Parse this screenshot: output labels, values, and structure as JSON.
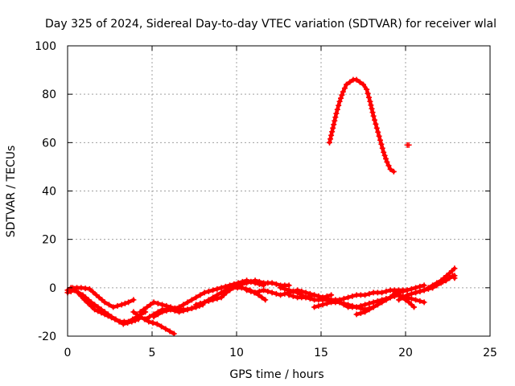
{
  "chart_data": {
    "type": "scatter",
    "title": "Day 325 of 2024, Sidereal Day-to-day VTEC variation (SDTVAR) for receiver wlal",
    "xlabel": "GPS time / hours",
    "ylabel": "SDTVAR / TECUs",
    "xlim": [
      0,
      25
    ],
    "ylim": [
      -20,
      100
    ],
    "xticks": [
      0,
      5,
      10,
      15,
      20,
      25
    ],
    "yticks": [
      -20,
      0,
      20,
      40,
      60,
      80,
      100
    ],
    "xtick_labels": [
      "0",
      "5",
      "10",
      "15",
      "20",
      "25"
    ],
    "ytick_labels": [
      "-20",
      "0",
      "20",
      "40",
      "60",
      "80",
      "100"
    ],
    "grid": true,
    "marker_color": "#ff0000",
    "series": [
      {
        "name": "arc-1",
        "points": [
          [
            0,
            -1
          ],
          [
            0.3,
            0
          ],
          [
            0.8,
            0
          ],
          [
            1.3,
            -0.5
          ],
          [
            1.7,
            -3
          ],
          [
            2.2,
            -6
          ],
          [
            2.7,
            -8
          ],
          [
            3.2,
            -7
          ],
          [
            3.6,
            -6
          ],
          [
            3.9,
            -5
          ]
        ]
      },
      {
        "name": "arc-2",
        "points": [
          [
            0,
            -2
          ],
          [
            0.4,
            -1
          ],
          [
            0.9,
            -3
          ],
          [
            1.4,
            -6
          ],
          [
            2,
            -9
          ],
          [
            2.6,
            -12
          ],
          [
            3.1,
            -14
          ],
          [
            3.6,
            -14
          ],
          [
            4.1,
            -12
          ],
          [
            4.6,
            -10
          ]
        ]
      },
      {
        "name": "arc-3",
        "points": [
          [
            0.2,
            0
          ],
          [
            0.6,
            -2
          ],
          [
            1,
            -5
          ],
          [
            1.6,
            -9
          ],
          [
            2.2,
            -11
          ],
          [
            2.8,
            -13
          ],
          [
            3.3,
            -15
          ],
          [
            3.8,
            -14
          ],
          [
            4.2,
            -13
          ]
        ]
      },
      {
        "name": "arc-4",
        "points": [
          [
            3.9,
            -10
          ],
          [
            4.3,
            -12
          ],
          [
            4.8,
            -14
          ],
          [
            5.3,
            -15
          ],
          [
            5.8,
            -17
          ],
          [
            6.3,
            -19
          ]
        ]
      },
      {
        "name": "arc-5",
        "points": [
          [
            4.3,
            -10
          ],
          [
            4.7,
            -8
          ],
          [
            5.1,
            -6
          ],
          [
            5.6,
            -7
          ],
          [
            6.1,
            -8
          ],
          [
            6.6,
            -9
          ],
          [
            7.1,
            -9
          ],
          [
            7.6,
            -8
          ],
          [
            8,
            -7
          ]
        ]
      },
      {
        "name": "arc-6",
        "points": [
          [
            4.6,
            -13
          ],
          [
            5.1,
            -11
          ],
          [
            5.6,
            -9
          ],
          [
            6.1,
            -9
          ],
          [
            6.6,
            -10
          ],
          [
            7.1,
            -9
          ],
          [
            7.6,
            -8
          ],
          [
            8.1,
            -6
          ],
          [
            8.6,
            -4
          ],
          [
            9.1,
            -2
          ],
          [
            9.6,
            0
          ],
          [
            10.1,
            1
          ],
          [
            10.6,
            2
          ],
          [
            11.1,
            3
          ],
          [
            11.6,
            2
          ],
          [
            12.1,
            2
          ],
          [
            12.6,
            1
          ],
          [
            13.1,
            1
          ]
        ]
      },
      {
        "name": "arc-7",
        "points": [
          [
            5.1,
            -12
          ],
          [
            5.6,
            -10
          ],
          [
            6.1,
            -9
          ],
          [
            6.6,
            -8
          ],
          [
            7.1,
            -6
          ],
          [
            7.6,
            -4
          ],
          [
            8.1,
            -2
          ],
          [
            8.6,
            -1
          ],
          [
            9.1,
            0
          ],
          [
            9.6,
            1
          ],
          [
            10.1,
            2
          ],
          [
            10.6,
            3
          ],
          [
            11.1,
            2
          ],
          [
            11.6,
            1
          ]
        ]
      },
      {
        "name": "arc-8",
        "points": [
          [
            7.6,
            -7
          ],
          [
            8.1,
            -6
          ],
          [
            8.6,
            -5
          ],
          [
            9.1,
            -4
          ],
          [
            9.4,
            -2
          ],
          [
            9.8,
            0
          ],
          [
            10.3,
            0
          ],
          [
            10.8,
            -1
          ],
          [
            11.3,
            -3
          ],
          [
            11.7,
            -5
          ]
        ]
      },
      {
        "name": "arc-9",
        "points": [
          [
            10.6,
            -1
          ],
          [
            11.1,
            -2
          ],
          [
            11.6,
            -1
          ],
          [
            12.1,
            -2
          ],
          [
            12.6,
            -3
          ],
          [
            13.1,
            -2
          ],
          [
            13.6,
            -1
          ],
          [
            14.1,
            -2
          ],
          [
            14.6,
            -3
          ],
          [
            15.1,
            -4
          ],
          [
            15.6,
            -3
          ]
        ]
      },
      {
        "name": "arc-10",
        "points": [
          [
            12.6,
            0
          ],
          [
            13.1,
            -1
          ],
          [
            13.6,
            -2
          ],
          [
            14.1,
            -4
          ],
          [
            14.6,
            -5
          ],
          [
            15.1,
            -5
          ],
          [
            15.6,
            -5
          ],
          [
            16.1,
            -5
          ],
          [
            16.6,
            -4
          ],
          [
            17.1,
            -3
          ],
          [
            17.6,
            -3
          ],
          [
            18.1,
            -2
          ],
          [
            18.6,
            -2
          ],
          [
            19.1,
            -1
          ],
          [
            19.6,
            -1
          ],
          [
            20.1,
            -1
          ]
        ]
      },
      {
        "name": "arc-11",
        "points": [
          [
            13.1,
            -3
          ],
          [
            13.6,
            -4
          ],
          [
            14.1,
            -4
          ],
          [
            14.6,
            -3
          ],
          [
            15.1,
            -4
          ],
          [
            15.6,
            -5
          ],
          [
            16.1,
            -6
          ],
          [
            16.6,
            -8
          ],
          [
            17.1,
            -8
          ],
          [
            17.6,
            -7
          ],
          [
            18.1,
            -6
          ],
          [
            18.6,
            -5
          ],
          [
            19.1,
            -4
          ],
          [
            19.6,
            -2
          ],
          [
            20.1,
            -1
          ],
          [
            20.6,
            0
          ],
          [
            21.1,
            1
          ]
        ]
      },
      {
        "name": "arc-12",
        "points": [
          [
            14.6,
            -8
          ],
          [
            15.1,
            -7
          ],
          [
            15.6,
            -6
          ],
          [
            16.1,
            -6
          ],
          [
            16.6,
            -7
          ],
          [
            17.1,
            -8
          ],
          [
            17.6,
            -9
          ],
          [
            18.1,
            -8
          ],
          [
            18.6,
            -6
          ],
          [
            19.1,
            -4
          ],
          [
            19.6,
            -3
          ],
          [
            20.1,
            -4
          ],
          [
            20.6,
            -5
          ],
          [
            21.1,
            -6
          ]
        ]
      },
      {
        "name": "arc-13",
        "points": [
          [
            17.1,
            -11
          ],
          [
            17.6,
            -10
          ],
          [
            18.1,
            -8
          ],
          [
            18.6,
            -6
          ],
          [
            19.1,
            -4
          ],
          [
            19.4,
            -2
          ],
          [
            19.8,
            -4
          ],
          [
            20.2,
            -6
          ],
          [
            20.5,
            -8
          ]
        ]
      },
      {
        "name": "arc-14",
        "points": [
          [
            19.6,
            -5
          ],
          [
            20.1,
            -3
          ],
          [
            20.6,
            -2
          ],
          [
            21.1,
            -1
          ],
          [
            21.6,
            1
          ],
          [
            22.1,
            3
          ],
          [
            22.6,
            6
          ],
          [
            22.9,
            8
          ]
        ]
      },
      {
        "name": "arc-15",
        "points": [
          [
            20.6,
            -2
          ],
          [
            21.1,
            -1
          ],
          [
            21.6,
            0
          ],
          [
            22.1,
            2
          ],
          [
            22.6,
            4
          ],
          [
            22.9,
            5
          ]
        ]
      },
      {
        "name": "arc-16",
        "points": [
          [
            21.6,
            0
          ],
          [
            22,
            2
          ],
          [
            22.4,
            3
          ],
          [
            22.8,
            5
          ],
          [
            22.9,
            4
          ]
        ]
      },
      {
        "name": "arc-17",
        "points": [
          [
            15.5,
            60
          ],
          [
            15.7,
            66
          ],
          [
            15.9,
            72
          ],
          [
            16.1,
            77
          ],
          [
            16.3,
            81
          ],
          [
            16.5,
            84
          ],
          [
            16.7,
            85
          ],
          [
            16.9,
            86
          ],
          [
            17.1,
            86
          ],
          [
            17.3,
            85
          ],
          [
            17.5,
            84
          ],
          [
            17.7,
            82
          ],
          [
            17.9,
            77
          ],
          [
            18.1,
            71
          ],
          [
            18.3,
            66
          ],
          [
            18.5,
            61
          ],
          [
            18.7,
            56
          ],
          [
            18.9,
            52
          ],
          [
            19.1,
            49
          ],
          [
            19.3,
            48
          ]
        ]
      },
      {
        "name": "isolated",
        "points": [
          [
            20.1,
            59
          ]
        ]
      }
    ]
  }
}
